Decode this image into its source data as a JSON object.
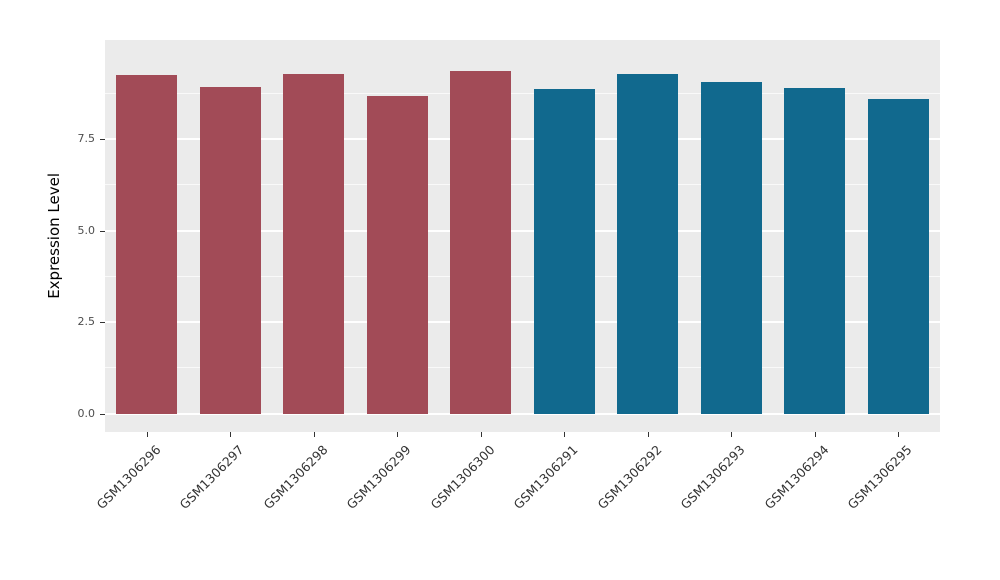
{
  "chart_data": {
    "type": "bar",
    "title": "",
    "xlabel": "",
    "ylabel": "Expression Level",
    "categories": [
      "GSM1306296",
      "GSM1306297",
      "GSM1306298",
      "GSM1306299",
      "GSM1306300",
      "GSM1306291",
      "GSM1306292",
      "GSM1306293",
      "GSM1306294",
      "GSM1306295"
    ],
    "values": [
      9.25,
      8.93,
      9.28,
      8.68,
      9.36,
      8.87,
      9.28,
      9.06,
      8.9,
      8.6
    ],
    "bar_colors": [
      "#A24B57",
      "#A24B57",
      "#A24B57",
      "#A24B57",
      "#A24B57",
      "#11698E",
      "#11698E",
      "#11698E",
      "#11698E",
      "#11698E"
    ],
    "group_colors": {
      "red_group": "#A24B57",
      "teal_group": "#11698E"
    },
    "ylim": [
      -0.5,
      10.2
    ],
    "yticks": [
      0,
      2.5,
      5,
      7.5
    ],
    "ytick_labels": [
      "0.0",
      "2.5",
      "5.0",
      "7.5"
    ],
    "minor_ticks": [
      1.25,
      3.75,
      6.25,
      8.75
    ],
    "panel_background": "#EBEBEB",
    "grid_color": "#FFFFFF",
    "legend": "none",
    "grid": "on"
  }
}
